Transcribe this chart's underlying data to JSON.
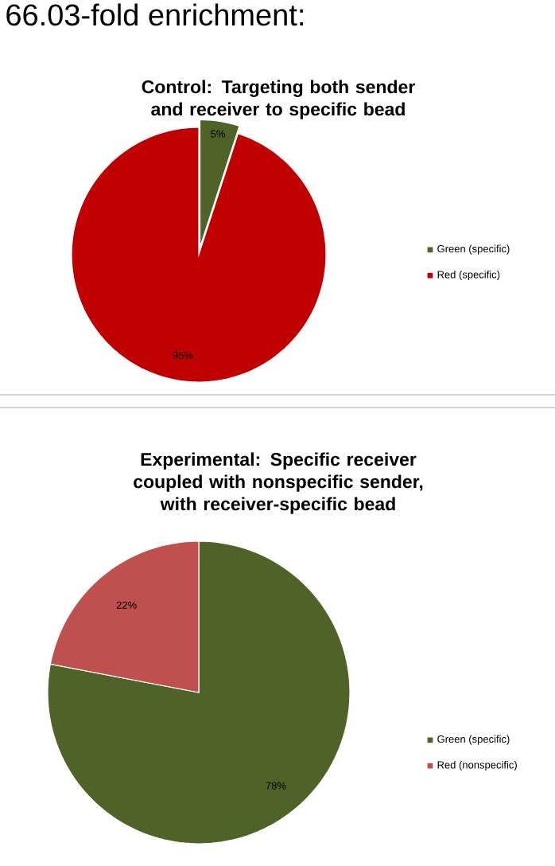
{
  "chart_data": [
    {
      "type": "pie",
      "title": "Control: Targeting both sender and receiver to specific bead",
      "annotations": [
        "66.03-fold enrichment:"
      ],
      "categories": [
        "Green (specific)",
        "Red (specific)"
      ],
      "values": [
        5,
        95
      ],
      "value_labels": [
        "5%",
        "95%"
      ],
      "colors": [
        "#4f6228",
        "#c00000"
      ],
      "legend": "right"
    },
    {
      "type": "pie",
      "title": "Experimental: Specific receiver coupled with nonspecific sender, with receiver-specific bead",
      "categories": [
        "Green (specific)",
        "Red (nonspecific)"
      ],
      "values": [
        78,
        22
      ],
      "value_labels": [
        "78%",
        "22%"
      ],
      "colors": [
        "#4f6228",
        "#c0504d"
      ],
      "legend": "right"
    }
  ]
}
